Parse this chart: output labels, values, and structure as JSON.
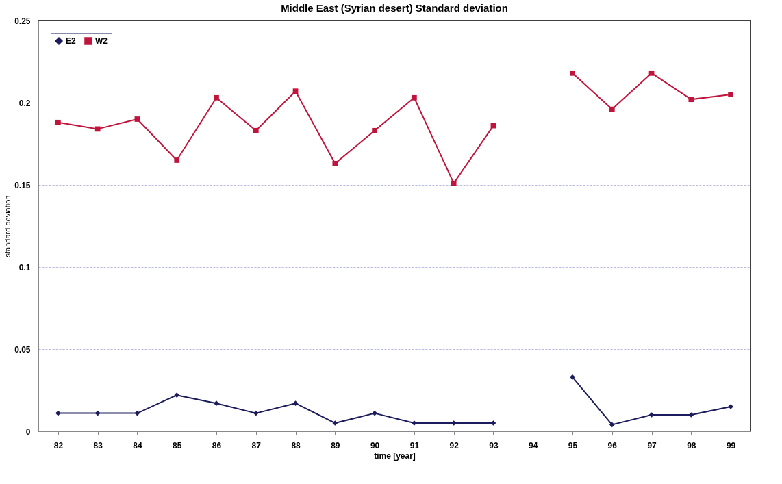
{
  "chart_data": {
    "type": "line",
    "title": "Middle East (Syrian desert) Standard deviation",
    "xlabel": "time [year]",
    "ylabel": "standard deviation",
    "categories": [
      "82",
      "83",
      "84",
      "85",
      "86",
      "87",
      "88",
      "89",
      "90",
      "91",
      "92",
      "93",
      "94",
      "95",
      "96",
      "97",
      "98",
      "99"
    ],
    "series": [
      {
        "name": "E2",
        "color": "#1c1c5c",
        "marker": "diamond",
        "values": [
          0.011,
          0.011,
          0.011,
          0.022,
          0.017,
          0.011,
          0.017,
          0.005,
          0.011,
          0.005,
          0.005,
          0.005,
          null,
          0.033,
          0.004,
          0.01,
          0.01,
          0.015
        ]
      },
      {
        "name": "W2",
        "color": "#c0143c",
        "marker": "square",
        "values": [
          0.188,
          0.184,
          0.19,
          0.165,
          0.203,
          0.183,
          0.207,
          0.163,
          0.183,
          0.203,
          0.151,
          0.186,
          null,
          0.218,
          0.196,
          0.218,
          0.202,
          0.205
        ]
      }
    ],
    "ylim": [
      0,
      0.25
    ],
    "yticks": [
      0,
      0.05,
      0.1,
      0.15,
      0.2,
      0.25
    ],
    "grid": "y",
    "legend": "top left",
    "line_style": "solid"
  }
}
